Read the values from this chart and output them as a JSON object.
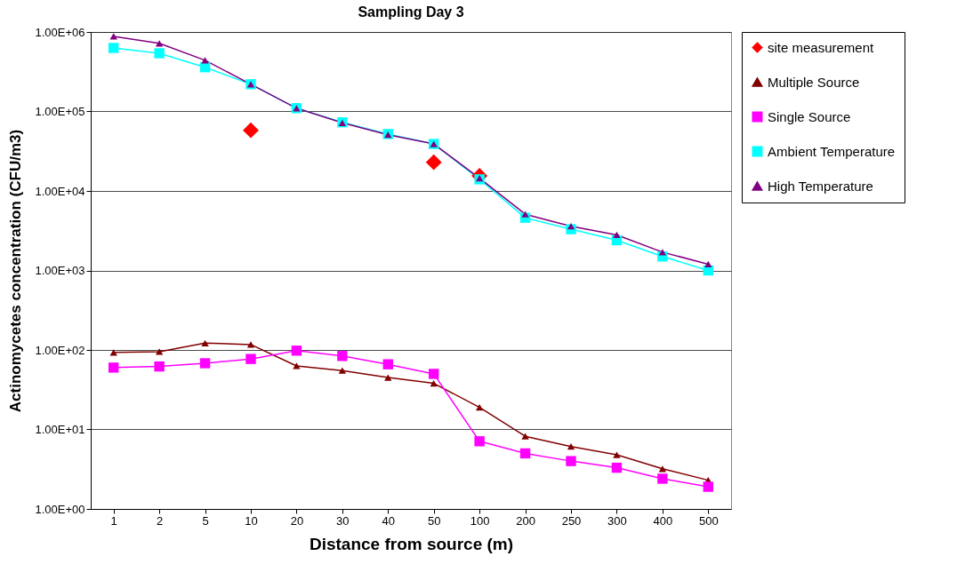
{
  "chart_data": {
    "type": "line",
    "title": "Sampling Day 3",
    "xlabel": "Distance from source (m)",
    "ylabel": "Actinomycetes concentration (CFU/m3)",
    "categories": [
      "1",
      "2",
      "5",
      "10",
      "20",
      "30",
      "40",
      "50",
      "100",
      "200",
      "250",
      "300",
      "400",
      "500"
    ],
    "series": [
      {
        "name": "site measurement",
        "type": "scatter",
        "marker": "diamond",
        "color": "#ff0000",
        "values": [
          null,
          null,
          null,
          58000,
          null,
          null,
          null,
          23000,
          15500,
          null,
          null,
          null,
          null,
          null
        ]
      },
      {
        "name": "Multiple Source",
        "marker": "triangle",
        "color": "#800000",
        "values": [
          93,
          95,
          122,
          117,
          63,
          55,
          45,
          38,
          19,
          8.2,
          6.1,
          4.8,
          3.2,
          2.3
        ]
      },
      {
        "name": "Single Source",
        "marker": "square",
        "color": "#ff00ff",
        "values": [
          60,
          62,
          68,
          77,
          98,
          84,
          66,
          50,
          7.1,
          5.0,
          4.0,
          3.3,
          2.4,
          1.9
        ]
      },
      {
        "name": "Ambient Temperature",
        "marker": "square",
        "color": "#00ffff",
        "values": [
          630000,
          540000,
          360000,
          220000,
          110000,
          73000,
          52000,
          39000,
          14000,
          4600,
          3300,
          2400,
          1500,
          1000
        ]
      },
      {
        "name": "High Temperature",
        "marker": "triangle",
        "color": "#800080",
        "values": [
          880000,
          720000,
          440000,
          220000,
          110000,
          72000,
          51000,
          39000,
          14500,
          5100,
          3600,
          2800,
          1700,
          1200
        ]
      }
    ],
    "log": "y",
    "ylim": [
      1,
      1000000
    ],
    "yticks": [
      {
        "value": 1,
        "label": "1.00E+00"
      },
      {
        "value": 10,
        "label": "1.00E+01"
      },
      {
        "value": 100,
        "label": "1.00E+02"
      },
      {
        "value": 1000,
        "label": "1.00E+03"
      },
      {
        "value": 10000,
        "label": "1.00E+04"
      },
      {
        "value": 100000,
        "label": "1.00E+05"
      },
      {
        "value": 1000000,
        "label": "1.00E+06"
      }
    ],
    "grid": "y",
    "legend": "right"
  }
}
